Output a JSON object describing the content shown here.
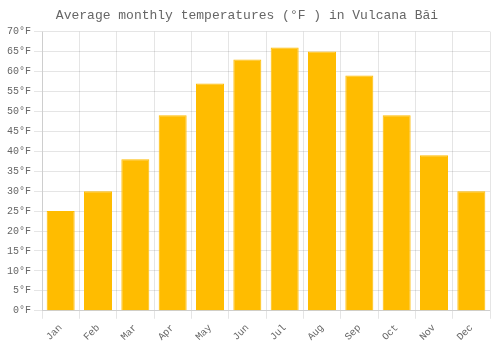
{
  "chart_data": {
    "type": "bar",
    "title": "Average monthly temperatures (°F ) in Vulcana Băi",
    "categories": [
      "Jan",
      "Feb",
      "Mar",
      "Apr",
      "May",
      "Jun",
      "Jul",
      "Aug",
      "Sep",
      "Oct",
      "Nov",
      "Dec"
    ],
    "values": [
      25,
      30,
      38,
      49,
      57,
      63,
      66,
      65,
      59,
      49,
      39,
      30
    ],
    "color": "#FFBC00",
    "ylim": [
      0,
      70
    ],
    "yticks": [
      {
        "value": 0,
        "label": "0°F"
      },
      {
        "value": 5,
        "label": "5°F"
      },
      {
        "value": 10,
        "label": "10°F"
      },
      {
        "value": 15,
        "label": "15°F"
      },
      {
        "value": 20,
        "label": "20°F"
      },
      {
        "value": 25,
        "label": "25°F"
      },
      {
        "value": 30,
        "label": "30°F"
      },
      {
        "value": 35,
        "label": "35°F"
      },
      {
        "value": 40,
        "label": "40°F"
      },
      {
        "value": 45,
        "label": "45°F"
      },
      {
        "value": 50,
        "label": "50°F"
      },
      {
        "value": 55,
        "label": "55°F"
      },
      {
        "value": 60,
        "label": "60°F"
      },
      {
        "value": 65,
        "label": "65°F"
      },
      {
        "value": 70,
        "label": "70°F"
      }
    ],
    "grid": true
  }
}
